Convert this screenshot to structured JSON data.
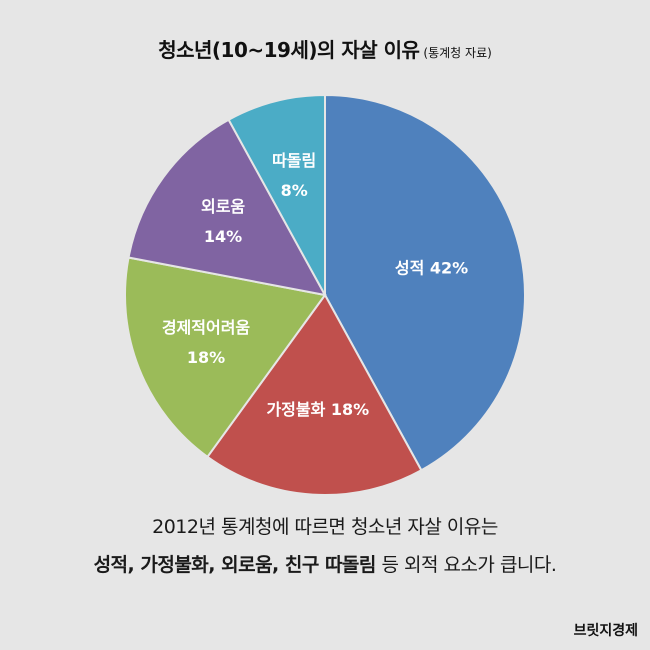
{
  "header": {
    "title": "청소년(10~19세)의 자살 이유",
    "source": "(통계청 자료)"
  },
  "chart_data": {
    "type": "pie",
    "slices": [
      {
        "label": "성적",
        "value": 42,
        "color": "#4f81bd",
        "text": "성적 42%"
      },
      {
        "label": "가정불화",
        "value": 18,
        "color": "#c0504d",
        "text": "가정불화 18%"
      },
      {
        "label": "경제적어려움",
        "value": 18,
        "color": "#9bbb59",
        "text": "경제적어려움\n18%"
      },
      {
        "label": "외로움",
        "value": 14,
        "color": "#8064a2",
        "text": "외로움\n14%"
      },
      {
        "label": "따돌림",
        "value": 8,
        "color": "#4bacc6",
        "text": "따돌림\n8%"
      }
    ],
    "start_angle_deg": 0,
    "direction": "clockwise"
  },
  "caption": {
    "line1": "2012년 통계청에 따르면 청소년 자살 이유는",
    "line2_bold": "성적, 가정불화, 외로움, 친구 따돌림",
    "line2_rest": " 등 외적 요소가 큽니다."
  },
  "brand": "브릿지경제"
}
